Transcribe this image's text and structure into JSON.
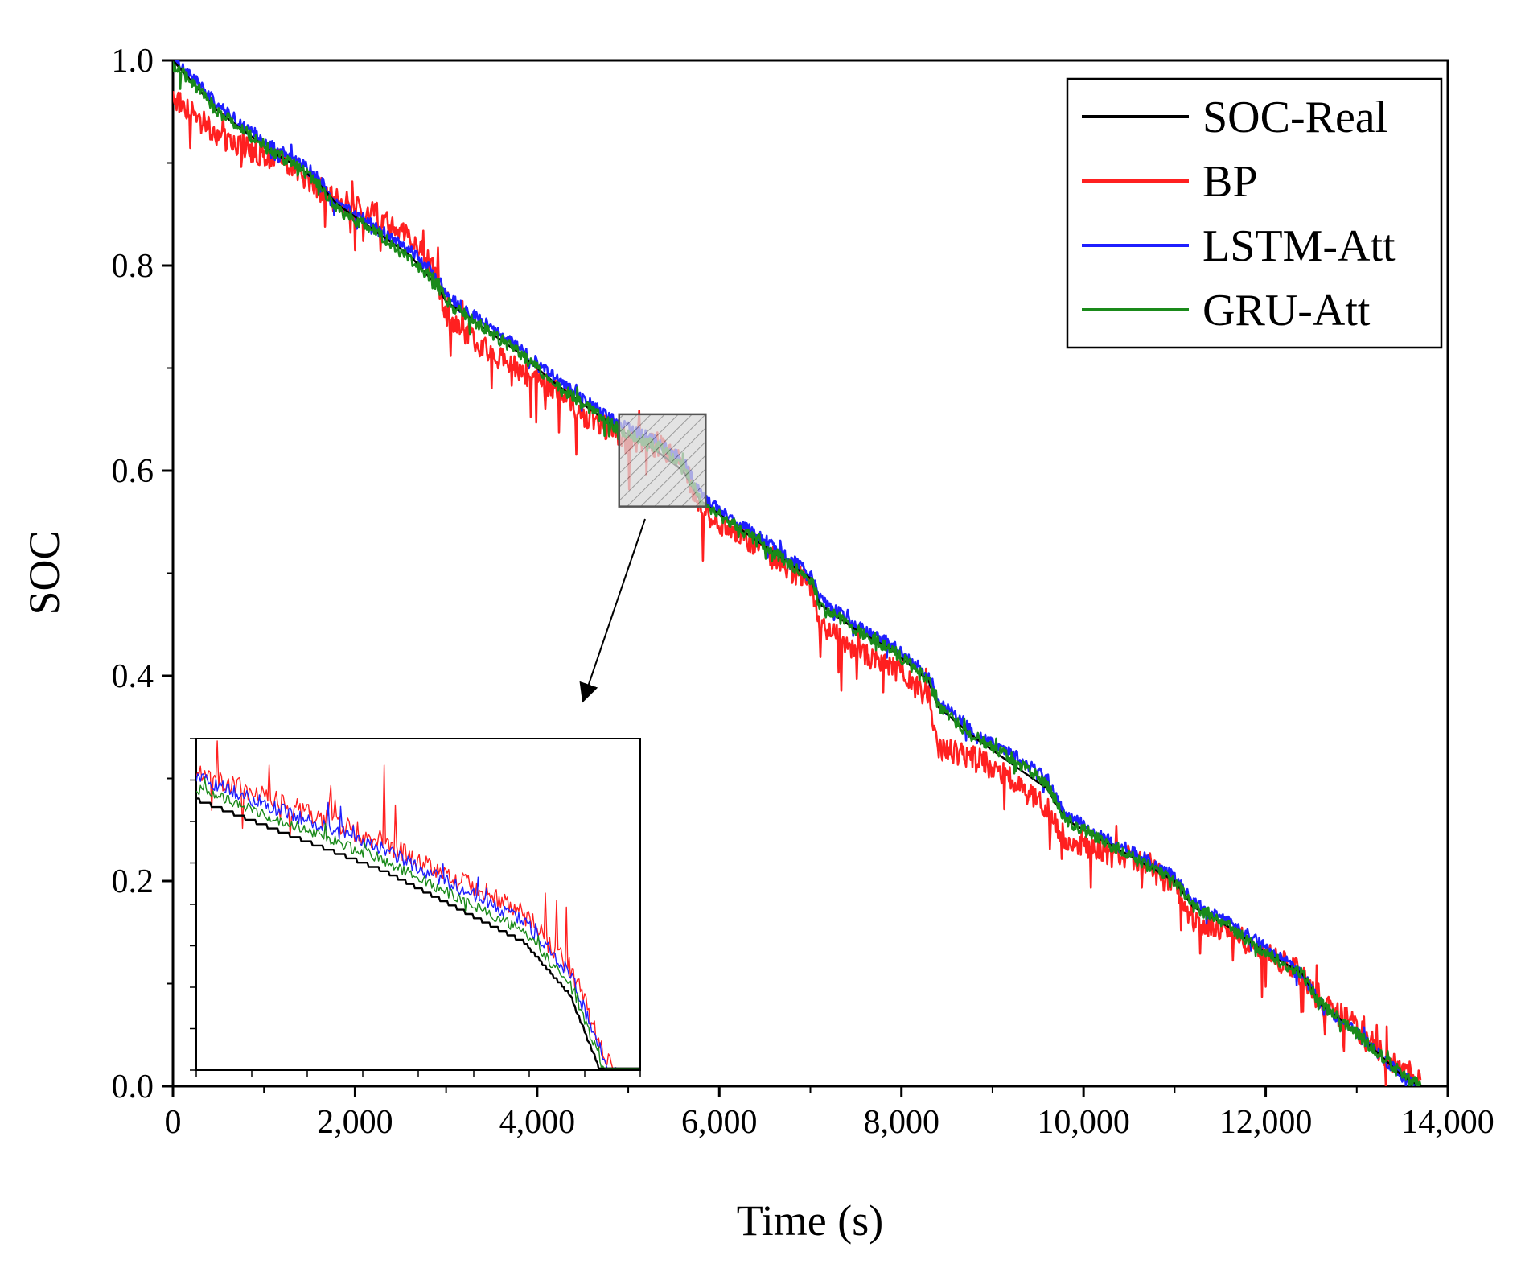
{
  "chart_data": {
    "type": "line",
    "title": "",
    "xlabel": "Time (s)",
    "ylabel": "SOC",
    "xlim": [
      0,
      14000
    ],
    "ylim": [
      0,
      1.0
    ],
    "x_ticks": [
      0,
      2000,
      4000,
      6000,
      8000,
      10000,
      12000,
      14000
    ],
    "x_tick_labels": [
      "0",
      "2,000",
      "4,000",
      "6,000",
      "8,000",
      "10,000",
      "12,000",
      "14,000"
    ],
    "y_ticks": [
      0.0,
      0.2,
      0.4,
      0.6,
      0.8,
      1.0
    ],
    "y_tick_labels": [
      "0.0",
      "0.2",
      "0.4",
      "0.6",
      "0.8",
      "1.0"
    ],
    "legend_position": "top-right",
    "colors": {
      "soc_real": "#000000",
      "bp": "#ff2020",
      "lstm_att": "#1f1fff",
      "gru_att": "#1a8a1a"
    },
    "series": [
      {
        "name": "SOC-Real",
        "key": "soc_real",
        "x": [
          0,
          200,
          500,
          800,
          1100,
          1400,
          1600,
          1800,
          2200,
          2600,
          2900,
          3000,
          3400,
          3800,
          4200,
          4500,
          4900,
          5300,
          5600,
          5800,
          6200,
          6600,
          7000,
          7100,
          7500,
          7900,
          8300,
          8400,
          8800,
          9200,
          9600,
          9800,
          10200,
          10600,
          11000,
          11200,
          11600,
          12000,
          12400,
          12600,
          12900,
          13200,
          13500,
          13700
        ],
        "y": [
          1.0,
          0.98,
          0.95,
          0.93,
          0.91,
          0.895,
          0.88,
          0.86,
          0.835,
          0.81,
          0.78,
          0.765,
          0.74,
          0.715,
          0.685,
          0.665,
          0.64,
          0.62,
          0.6,
          0.57,
          0.545,
          0.52,
          0.495,
          0.47,
          0.445,
          0.425,
          0.395,
          0.37,
          0.34,
          0.315,
          0.29,
          0.26,
          0.24,
          0.22,
          0.2,
          0.175,
          0.155,
          0.13,
          0.11,
          0.08,
          0.06,
          0.035,
          0.01,
          0.0
        ]
      },
      {
        "name": "BP",
        "key": "bp",
        "x": [
          0,
          200,
          500,
          800,
          1100,
          1400,
          1600,
          1800,
          2200,
          2600,
          2900,
          3000,
          3400,
          3800,
          4200,
          4500,
          4900,
          5300,
          5600,
          5800,
          6200,
          6600,
          7000,
          7100,
          7500,
          7900,
          8300,
          8400,
          8800,
          9200,
          9600,
          9800,
          10200,
          10600,
          11000,
          11200,
          11600,
          12000,
          12400,
          12600,
          12900,
          13200,
          13500,
          13700
        ],
        "y": [
          0.965,
          0.95,
          0.925,
          0.915,
          0.905,
          0.89,
          0.875,
          0.865,
          0.85,
          0.83,
          0.79,
          0.75,
          0.72,
          0.7,
          0.68,
          0.655,
          0.635,
          0.625,
          0.61,
          0.56,
          0.54,
          0.515,
          0.49,
          0.45,
          0.425,
          0.41,
          0.38,
          0.33,
          0.32,
          0.3,
          0.27,
          0.24,
          0.23,
          0.22,
          0.195,
          0.16,
          0.15,
          0.13,
          0.11,
          0.08,
          0.065,
          0.04,
          0.015,
          0.01
        ]
      },
      {
        "name": "LSTM-Att",
        "key": "lstm_att",
        "x": [
          0,
          200,
          500,
          800,
          1100,
          1400,
          1600,
          1800,
          2200,
          2600,
          2900,
          3000,
          3400,
          3800,
          4200,
          4500,
          4900,
          5300,
          5600,
          5800,
          6200,
          6600,
          7000,
          7100,
          7500,
          7900,
          8300,
          8400,
          8800,
          9200,
          9600,
          9800,
          10200,
          10600,
          11000,
          11200,
          11600,
          12000,
          12400,
          12600,
          12900,
          13200,
          13500,
          13700
        ],
        "y": [
          1.0,
          0.985,
          0.955,
          0.935,
          0.915,
          0.9,
          0.885,
          0.86,
          0.84,
          0.815,
          0.79,
          0.77,
          0.745,
          0.72,
          0.69,
          0.67,
          0.645,
          0.63,
          0.61,
          0.575,
          0.55,
          0.525,
          0.5,
          0.475,
          0.45,
          0.43,
          0.4,
          0.375,
          0.345,
          0.325,
          0.3,
          0.265,
          0.245,
          0.225,
          0.205,
          0.18,
          0.16,
          0.135,
          0.11,
          0.08,
          0.06,
          0.035,
          0.01,
          0.0
        ]
      },
      {
        "name": "GRU-Att",
        "key": "gru_att",
        "x": [
          0,
          200,
          500,
          800,
          1100,
          1400,
          1600,
          1800,
          2200,
          2600,
          2900,
          3000,
          3400,
          3800,
          4200,
          4500,
          4900,
          5300,
          5600,
          5800,
          6200,
          6600,
          7000,
          7100,
          7500,
          7900,
          8300,
          8400,
          8800,
          9200,
          9600,
          9800,
          10200,
          10600,
          11000,
          11200,
          11600,
          12000,
          12400,
          12600,
          12900,
          13200,
          13500,
          13700
        ],
        "y": [
          0.995,
          0.98,
          0.95,
          0.93,
          0.91,
          0.895,
          0.88,
          0.855,
          0.835,
          0.805,
          0.785,
          0.765,
          0.74,
          0.715,
          0.685,
          0.665,
          0.64,
          0.625,
          0.605,
          0.57,
          0.545,
          0.52,
          0.495,
          0.47,
          0.445,
          0.425,
          0.395,
          0.37,
          0.34,
          0.32,
          0.295,
          0.26,
          0.24,
          0.22,
          0.2,
          0.175,
          0.155,
          0.13,
          0.11,
          0.08,
          0.06,
          0.035,
          0.01,
          0.0
        ]
      }
    ],
    "highlight_box": {
      "x_range": [
        4900,
        5850
      ],
      "y_range": [
        0.565,
        0.655
      ]
    }
  }
}
